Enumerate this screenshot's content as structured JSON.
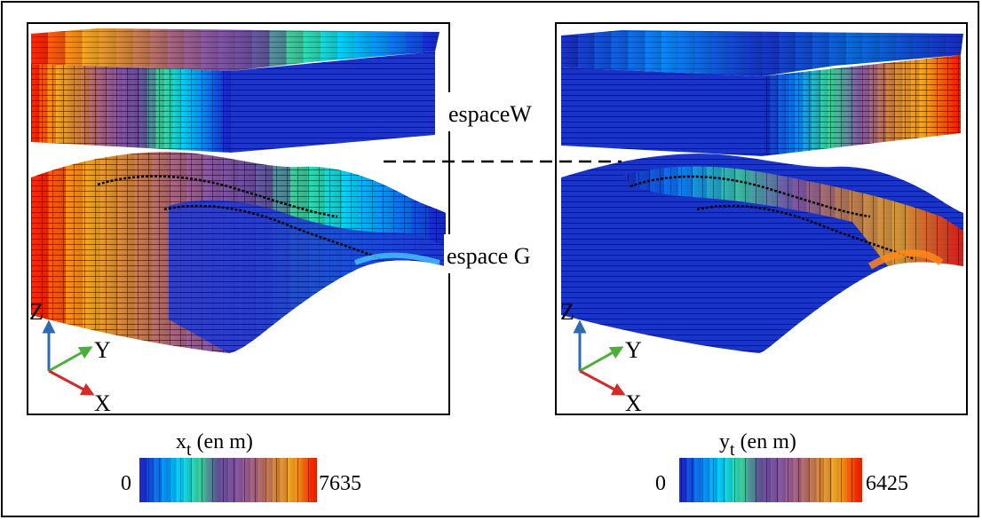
{
  "labels": {
    "espace_w": "espaceW",
    "espace_g": "espace G"
  },
  "left_panel": {
    "axis_z": "Z",
    "axis_y": "Y",
    "axis_x": "X",
    "colorbar": {
      "title_main": "x",
      "title_sub": "t",
      "title_rest": " (en m)",
      "min_label": "0",
      "max_label": "7635",
      "min_value": 0,
      "max_value": 7635
    }
  },
  "right_panel": {
    "axis_z": "Z",
    "axis_y": "Y",
    "axis_x": "X",
    "colorbar": {
      "title_main": "y",
      "title_sub": "t",
      "title_rest": " (en m)",
      "min_label": "0",
      "max_label": "6425",
      "min_value": 0,
      "max_value": 6425
    }
  },
  "colors": {
    "axis_z": "#2d6ab0",
    "axis_y": "#4caf3c",
    "axis_x": "#d32a2a",
    "colormap": [
      "#1a2fd6",
      "#0a8cff",
      "#00d8ff",
      "#40e0a0",
      "#6a4fa0",
      "#8a5aa8",
      "#b06a80",
      "#d98a40",
      "#ffb020",
      "#ff2a00"
    ]
  }
}
